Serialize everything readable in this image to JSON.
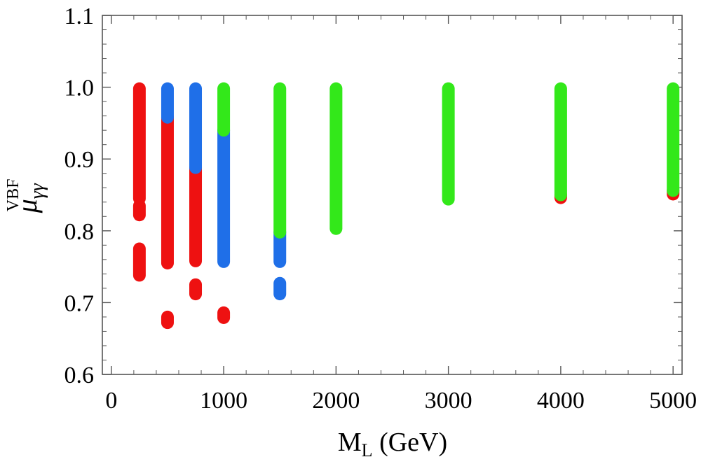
{
  "chart_data": {
    "type": "scatter",
    "title": "",
    "xlabel": {
      "main": "M",
      "sub": "L",
      "unit": " (GeV)"
    },
    "ylabel": {
      "main": "μ",
      "sub": "γγ",
      "sup": "VBF"
    },
    "xlim": [
      -80,
      5080
    ],
    "ylim": [
      0.6,
      1.1
    ],
    "xticks": [
      0,
      1000,
      2000,
      3000,
      4000,
      5000
    ],
    "xtick_labels": [
      "0",
      "1000",
      "2000",
      "3000",
      "4000",
      "5000"
    ],
    "yticks": [
      0.6,
      0.7,
      0.8,
      0.9,
      1.0,
      1.1
    ],
    "ytick_labels": [
      "0.6",
      "0.7",
      "0.8",
      "0.9",
      "1.0",
      "1.1"
    ],
    "grid": false,
    "series": [
      {
        "name": "red",
        "color": "#ee1111",
        "segments": [
          {
            "x": 250,
            "y_ranges": [
              [
                0.845,
                0.998
              ],
              [
                0.822,
                0.835
              ],
              [
                0.738,
                0.775
              ]
            ]
          },
          {
            "x": 500,
            "y_ranges": [
              [
                0.755,
                0.958
              ],
              [
                0.672,
                0.68
              ]
            ]
          },
          {
            "x": 750,
            "y_ranges": [
              [
                0.758,
                0.888
              ],
              [
                0.712,
                0.725
              ]
            ]
          },
          {
            "x": 1000,
            "y_ranges": [
              [
                0.679,
                0.686
              ]
            ]
          },
          {
            "x": 4000,
            "y_ranges": [
              [
                0.846,
                0.85
              ]
            ]
          },
          {
            "x": 5000,
            "y_ranges": [
              [
                0.851,
                0.856
              ]
            ]
          }
        ]
      },
      {
        "name": "blue",
        "color": "#1f6fe8",
        "segments": [
          {
            "x": 500,
            "y_ranges": [
              [
                0.958,
                0.998
              ]
            ]
          },
          {
            "x": 750,
            "y_ranges": [
              [
                0.888,
                0.998
              ]
            ]
          },
          {
            "x": 1000,
            "y_ranges": [
              [
                0.757,
                0.94
              ]
            ]
          },
          {
            "x": 1500,
            "y_ranges": [
              [
                0.757,
                0.798
              ]
            ]
          },
          {
            "x": 1500,
            "y_ranges": [
              [
                0.712,
                0.727
              ]
            ]
          }
        ]
      },
      {
        "name": "green",
        "color": "#33e81a",
        "segments": [
          {
            "x": 1000,
            "y_ranges": [
              [
                0.94,
                0.998
              ]
            ]
          },
          {
            "x": 1500,
            "y_ranges": [
              [
                0.798,
                0.998
              ]
            ]
          },
          {
            "x": 2000,
            "y_ranges": [
              [
                0.803,
                0.998
              ]
            ]
          },
          {
            "x": 3000,
            "y_ranges": [
              [
                0.844,
                0.998
              ]
            ]
          },
          {
            "x": 4000,
            "y_ranges": [
              [
                0.85,
                0.998
              ]
            ]
          },
          {
            "x": 5000,
            "y_ranges": [
              [
                0.856,
                0.998
              ]
            ]
          }
        ]
      }
    ]
  }
}
